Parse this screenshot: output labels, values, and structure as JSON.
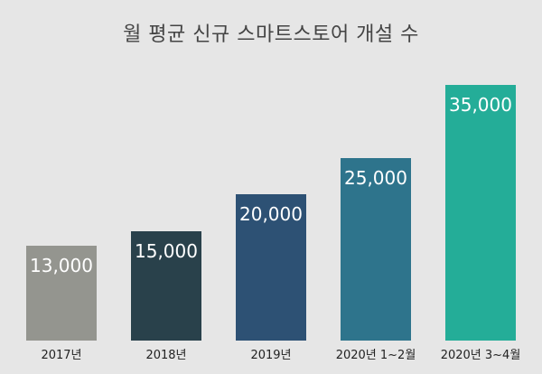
{
  "chart_data": {
    "type": "bar",
    "title": "월 평균 신규 스마트스토어 개설 수",
    "xlabel": "",
    "ylabel": "",
    "categories": [
      "2017년",
      "2018년",
      "2019년",
      "2020년 1~2월",
      "2020년 3~4월"
    ],
    "values": [
      13000,
      15000,
      20000,
      25000,
      35000
    ],
    "value_labels": [
      "13,000",
      "15,000",
      "20,000",
      "25,000",
      "35,000"
    ],
    "colors": [
      "#94958f",
      "#29414b",
      "#2d5174",
      "#2e748c",
      "#24ad98"
    ],
    "ylim": [
      0,
      35000
    ],
    "grid": false,
    "legend": null
  }
}
